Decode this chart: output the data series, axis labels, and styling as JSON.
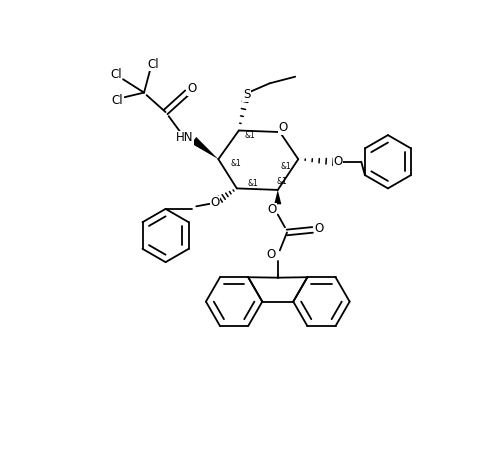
{
  "background_color": "#ffffff",
  "line_color": "#000000",
  "line_width": 1.3,
  "font_size": 8.5,
  "figsize": [
    4.91,
    4.69
  ],
  "dpi": 100,
  "xlim": [
    0,
    9.5
  ],
  "ylim": [
    0,
    9.1
  ]
}
